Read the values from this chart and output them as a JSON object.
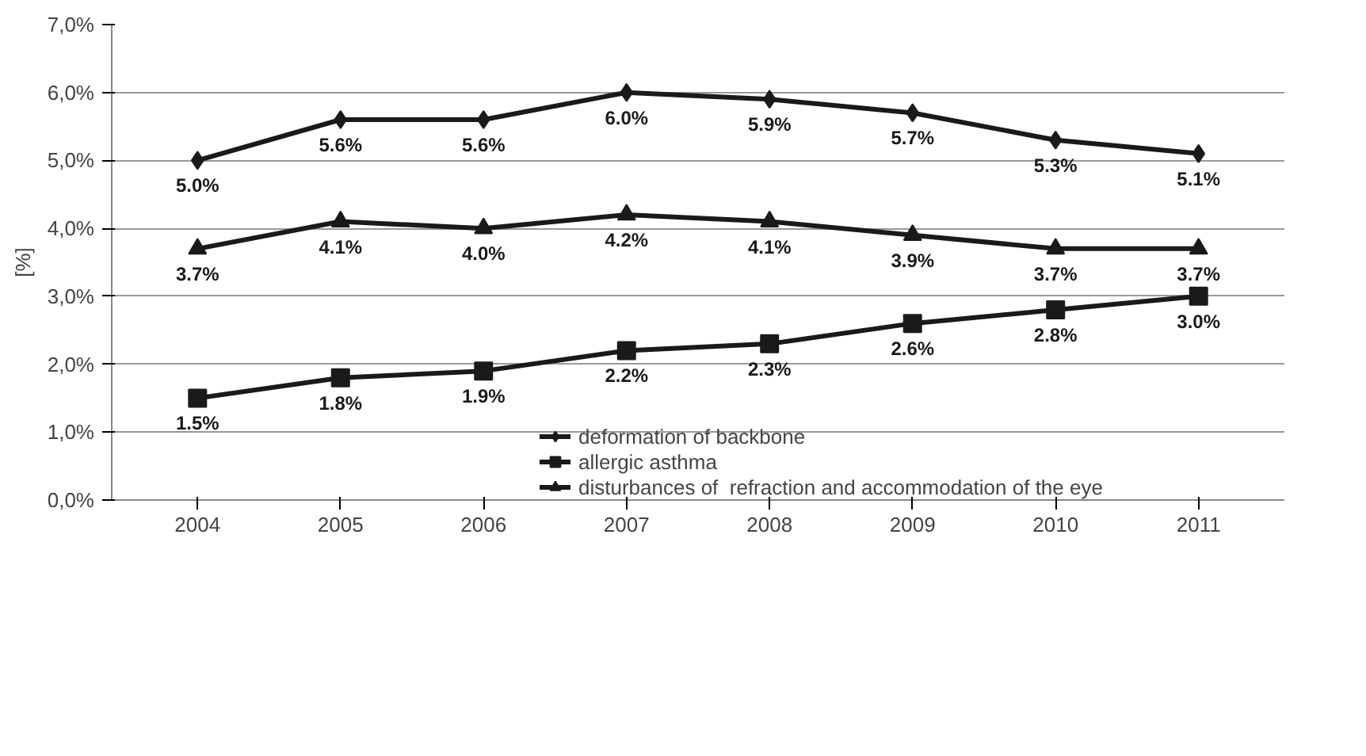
{
  "chart_data": {
    "type": "line",
    "ylabel": "[%]",
    "categories": [
      "2004",
      "2005",
      "2006",
      "2007",
      "2008",
      "2009",
      "2010",
      "2011"
    ],
    "series": [
      {
        "name": "deformation of backbone",
        "color": "#1a1a1a",
        "marker": "diamond",
        "values": [
          5.0,
          5.6,
          5.6,
          6.0,
          5.9,
          5.7,
          5.3,
          5.1
        ],
        "value_labels": [
          "5.0%",
          "5.6%",
          "5.6%",
          "6.0%",
          "5.9%",
          "5.7%",
          "5.3%",
          "5.1%"
        ]
      },
      {
        "name": "allergic asthma",
        "color": "#1a1a1a",
        "marker": "square",
        "values": [
          1.5,
          1.8,
          1.9,
          2.2,
          2.3,
          2.6,
          2.8,
          3.0
        ],
        "value_labels": [
          "1.5%",
          "1.8%",
          "1.9%",
          "2.2%",
          "2.3%",
          "2.6%",
          "2.8%",
          "3.0%"
        ]
      },
      {
        "name": "disturbances of  refraction and accommodation of the eye",
        "color": "#1a1a1a",
        "marker": "triangle",
        "values": [
          3.7,
          4.1,
          4.0,
          4.2,
          4.1,
          3.9,
          3.7,
          3.7
        ],
        "value_labels": [
          "3.7%",
          "4.1%",
          "4.0%",
          "4.2%",
          "4.1%",
          "3.9%",
          "3.7%",
          "3.7%"
        ]
      }
    ],
    "ylim": [
      0,
      7
    ],
    "yticks": [
      {
        "value": 0,
        "label": "0,0%"
      },
      {
        "value": 1,
        "label": "1,0%"
      },
      {
        "value": 2,
        "label": "2,0%"
      },
      {
        "value": 3,
        "label": "3,0%"
      },
      {
        "value": 4,
        "label": "4,0%"
      },
      {
        "value": 5,
        "label": "5,0%"
      },
      {
        "value": 6,
        "label": "6,0%"
      },
      {
        "value": 7,
        "label": "7,0%"
      }
    ],
    "grid": "y",
    "legend": "bottom"
  }
}
